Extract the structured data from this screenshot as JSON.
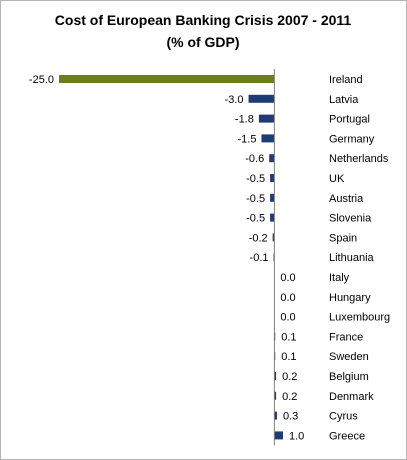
{
  "chart_data": {
    "type": "bar",
    "orientation": "horizontal",
    "title": [
      "Cost of European Banking Crisis 2007 - 2011",
      "(% of GDP)"
    ],
    "categories": [
      "Ireland",
      "Latvia",
      "Portugal",
      "Germany",
      "Netherlands",
      "UK",
      "Austria",
      "Slovenia",
      "Spain",
      "Lithuania",
      "Italy",
      "Hungary",
      "Luxembourg",
      "France",
      "Sweden",
      "Belgium",
      "Denmark",
      "Cyrus",
      "Greece"
    ],
    "values": [
      -25.0,
      -3.0,
      -1.8,
      -1.5,
      -0.6,
      -0.5,
      -0.5,
      -0.5,
      -0.2,
      -0.1,
      0.0,
      0.0,
      0.0,
      0.1,
      0.1,
      0.2,
      0.2,
      0.3,
      1.0
    ],
    "value_labels": [
      "-25.0",
      "-3.0",
      "-1.8",
      "-1.5",
      "-0.6",
      "-0.5",
      "-0.5",
      "-0.5",
      "-0.2",
      "-0.1",
      "0.0",
      "0.0",
      "0.0",
      "0.1",
      "0.1",
      "0.2",
      "0.2",
      "0.3",
      "1.0"
    ],
    "xlim": [
      -25,
      1
    ],
    "grid": false,
    "legend": "none",
    "colors": {
      "highlight": "#6b7f1f",
      "default": "#1f3b73",
      "axis": "#808080"
    },
    "highlight_category": "Ireland"
  }
}
